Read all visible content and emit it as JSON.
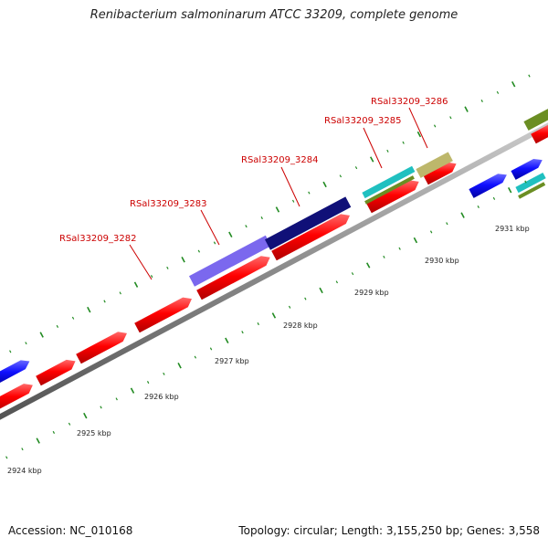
{
  "title": "Renibacterium salmoninarum ATCC 33209, complete genome",
  "footer": {
    "accession": "Accession: NC_010168",
    "summary": "Topology: circular; Length: 3,155,250 bp; Genes: 3,558"
  },
  "axis_labels": [
    "2924 kbp",
    "2925 kbp",
    "2926 kbp",
    "2927 kbp",
    "2928 kbp",
    "2929 kbp",
    "2930 kbp",
    "2931 kbp"
  ],
  "gene_labels": [
    "RSal33209_3282",
    "RSal33209_3283",
    "RSal33209_3284",
    "RSal33209_3285",
    "RSal33209_3286"
  ],
  "colors": {
    "cds": "#ff0000",
    "forward_blue": "#1010ff",
    "highlight_purple": "#7b68ee",
    "highlight_navy": "#101078",
    "cyan": "#20c0c0",
    "olive": "#6b8e23",
    "khaki": "#bdb76b",
    "backbone": "#888888",
    "tick_green": "#228b22",
    "label_red": "#cc0000"
  }
}
